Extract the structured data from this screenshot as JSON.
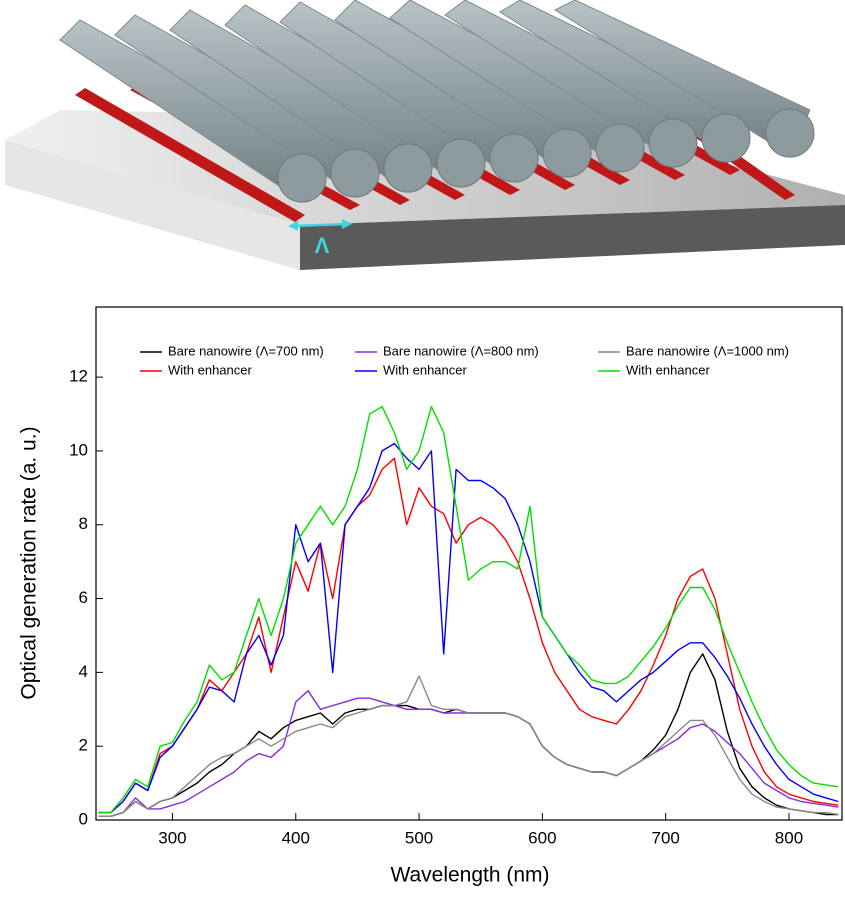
{
  "illustration": {
    "label": "Λ"
  },
  "chart_data": {
    "type": "line",
    "x_label": "Wavelength (nm)",
    "y_label": "Optical generation rate (a. u.)",
    "xlim": [
      238,
      843
    ],
    "ylim": [
      0,
      13.9
    ],
    "xticks": [
      300,
      400,
      500,
      600,
      700,
      800
    ],
    "yticks": [
      0,
      2,
      4,
      6,
      8,
      10,
      12
    ],
    "x": [
      240,
      250,
      260,
      270,
      280,
      290,
      300,
      310,
      320,
      330,
      340,
      350,
      360,
      370,
      380,
      390,
      400,
      410,
      420,
      430,
      440,
      450,
      460,
      470,
      480,
      490,
      500,
      510,
      520,
      530,
      540,
      550,
      560,
      570,
      580,
      590,
      600,
      610,
      620,
      630,
      640,
      650,
      660,
      670,
      680,
      690,
      700,
      710,
      720,
      730,
      740,
      750,
      760,
      770,
      780,
      790,
      800,
      810,
      820,
      830,
      840
    ],
    "series": [
      {
        "name": "Bare nanowire  (Λ=700 nm)",
        "color": "#000000",
        "values": [
          0.1,
          0.1,
          0.2,
          0.5,
          0.3,
          0.5,
          0.6,
          0.8,
          1.0,
          1.3,
          1.5,
          1.8,
          2.0,
          2.4,
          2.2,
          2.5,
          2.7,
          2.8,
          2.9,
          2.6,
          2.9,
          3.0,
          3.0,
          3.1,
          3.1,
          3.1,
          3.0,
          3.0,
          2.9,
          3.0,
          2.9,
          2.9,
          2.9,
          2.9,
          2.8,
          2.6,
          2.0,
          1.7,
          1.5,
          1.4,
          1.3,
          1.3,
          1.2,
          1.4,
          1.6,
          1.9,
          2.3,
          3.0,
          4.0,
          4.5,
          3.8,
          2.4,
          1.4,
          0.9,
          0.6,
          0.4,
          0.3,
          0.25,
          0.2,
          0.15,
          0.15
        ]
      },
      {
        "name": "With enhancer",
        "color": "#ff0000",
        "values": [
          0.2,
          0.2,
          0.5,
          1.0,
          0.8,
          1.8,
          2.0,
          2.5,
          3.0,
          3.8,
          3.5,
          4.0,
          4.5,
          5.5,
          4.0,
          5.5,
          7.0,
          6.2,
          7.5,
          6.0,
          8.0,
          8.5,
          8.8,
          9.5,
          9.8,
          8.0,
          9.0,
          8.5,
          8.3,
          7.5,
          8.0,
          8.2,
          8.0,
          7.6,
          7.0,
          6.0,
          4.8,
          4.0,
          3.5,
          3.0,
          2.8,
          2.7,
          2.6,
          3.0,
          3.5,
          4.2,
          5.0,
          6.0,
          6.6,
          6.8,
          6.0,
          4.5,
          3.0,
          2.0,
          1.3,
          0.9,
          0.7,
          0.6,
          0.5,
          0.45,
          0.4
        ]
      },
      {
        "name": "Bare nanowire (Λ=800 nm)",
        "color": "#8a2be2",
        "values": [
          0.1,
          0.1,
          0.2,
          0.6,
          0.3,
          0.3,
          0.4,
          0.5,
          0.7,
          0.9,
          1.1,
          1.3,
          1.6,
          1.8,
          1.7,
          2.0,
          3.2,
          3.5,
          3.0,
          3.1,
          3.2,
          3.3,
          3.3,
          3.2,
          3.1,
          3.0,
          3.0,
          3.0,
          2.9,
          2.9,
          2.9,
          2.9,
          2.9,
          2.9,
          2.8,
          2.6,
          2.0,
          1.7,
          1.5,
          1.4,
          1.3,
          1.3,
          1.2,
          1.4,
          1.6,
          1.8,
          2.0,
          2.2,
          2.5,
          2.6,
          2.4,
          2.1,
          1.8,
          1.4,
          1.0,
          0.8,
          0.6,
          0.5,
          0.45,
          0.4,
          0.35
        ]
      },
      {
        "name": "With enhancer",
        "color": "#0000ff",
        "values": [
          0.2,
          0.2,
          0.5,
          1.0,
          0.8,
          1.7,
          2.0,
          2.5,
          3.0,
          3.6,
          3.5,
          3.2,
          4.5,
          5.0,
          4.2,
          5.0,
          8.0,
          7.0,
          7.5,
          4.0,
          8.0,
          8.5,
          9.0,
          10.0,
          10.2,
          9.8,
          9.5,
          10.0,
          4.5,
          9.5,
          9.2,
          9.2,
          9.0,
          8.7,
          8.0,
          7.0,
          5.5,
          5.0,
          4.5,
          4.0,
          3.6,
          3.5,
          3.2,
          3.5,
          3.8,
          4.0,
          4.3,
          4.6,
          4.8,
          4.8,
          4.4,
          3.9,
          3.3,
          2.6,
          2.0,
          1.5,
          1.1,
          0.9,
          0.7,
          0.6,
          0.5
        ]
      },
      {
        "name": "Bare nanowire (Λ=1000 nm)",
        "color": "#888888",
        "values": [
          0.1,
          0.1,
          0.2,
          0.5,
          0.3,
          0.5,
          0.6,
          0.9,
          1.2,
          1.5,
          1.7,
          1.8,
          2.0,
          2.2,
          2.0,
          2.2,
          2.4,
          2.5,
          2.6,
          2.5,
          2.8,
          2.9,
          3.0,
          3.1,
          3.1,
          3.2,
          3.9,
          3.1,
          3.0,
          3.0,
          2.9,
          2.9,
          2.9,
          2.9,
          2.8,
          2.6,
          2.0,
          1.7,
          1.5,
          1.4,
          1.3,
          1.3,
          1.2,
          1.4,
          1.6,
          1.8,
          2.1,
          2.4,
          2.7,
          2.7,
          2.3,
          1.7,
          1.1,
          0.7,
          0.5,
          0.35,
          0.3,
          0.25,
          0.2,
          0.2,
          0.15
        ]
      },
      {
        "name": "With enhancer",
        "color": "#00e000",
        "values": [
          0.2,
          0.2,
          0.6,
          1.1,
          0.9,
          2.0,
          2.1,
          2.7,
          3.2,
          4.2,
          3.8,
          4.0,
          5.0,
          6.0,
          5.0,
          6.0,
          7.5,
          8.0,
          8.5,
          8.0,
          8.5,
          9.5,
          11.0,
          11.2,
          10.5,
          9.5,
          10.0,
          11.2,
          10.5,
          8.5,
          6.5,
          6.8,
          7.0,
          7.0,
          6.8,
          8.5,
          5.5,
          5.0,
          4.5,
          4.2,
          3.8,
          3.7,
          3.7,
          3.9,
          4.3,
          4.7,
          5.2,
          5.8,
          6.3,
          6.3,
          5.7,
          4.8,
          4.0,
          3.2,
          2.5,
          1.9,
          1.5,
          1.2,
          1.0,
          0.95,
          0.9
        ]
      }
    ]
  }
}
